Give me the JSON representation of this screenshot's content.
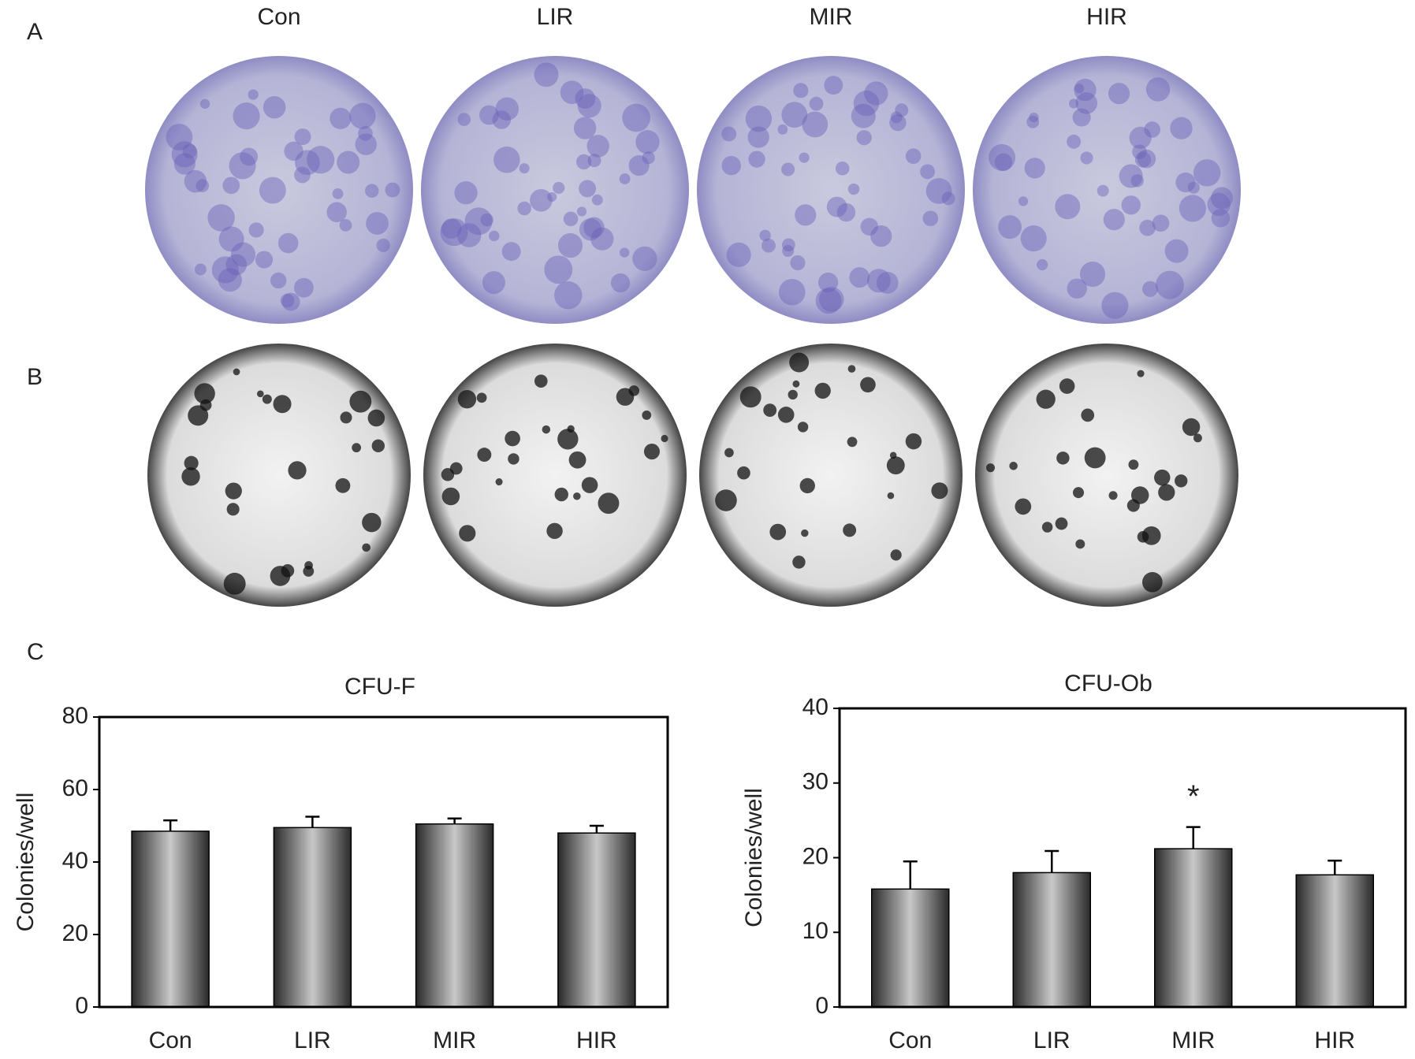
{
  "figure": {
    "panel_labels": [
      "A",
      "B",
      "C"
    ],
    "column_labels": [
      "Con",
      "LIR",
      "MIR",
      "HIR"
    ]
  },
  "chart_data": [
    {
      "type": "bar",
      "title": "CFU-F",
      "y_label": "Colonies/well",
      "categories": [
        "Con",
        "LIR",
        "MIR",
        "HIR"
      ],
      "values": [
        48.5,
        49.5,
        50.5,
        48
      ],
      "errors": [
        3,
        3,
        1.5,
        2
      ],
      "ylim": [
        0,
        80
      ],
      "yticks": [
        0,
        20,
        40,
        60,
        80
      ]
    },
    {
      "type": "bar",
      "title": "CFU-Ob",
      "y_label": "Colonies/well",
      "categories": [
        "Con",
        "LIR",
        "MIR",
        "HIR"
      ],
      "values": [
        15.8,
        18,
        21.2,
        17.7
      ],
      "errors": [
        3.7,
        2.9,
        2.9,
        1.9
      ],
      "ylim": [
        0,
        40
      ],
      "yticks": [
        0,
        10,
        20,
        30,
        40
      ],
      "annotations": [
        {
          "label": "*",
          "x": "MIR"
        }
      ]
    }
  ]
}
